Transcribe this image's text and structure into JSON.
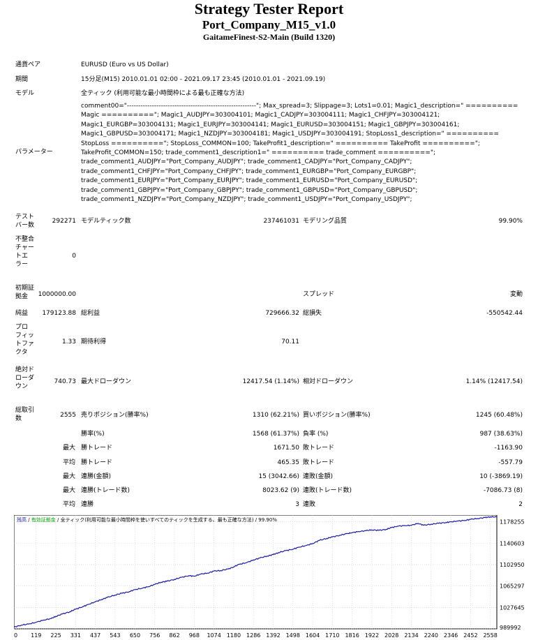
{
  "header": {
    "title": "Strategy Tester Report",
    "subtitle": "Port_Company_M15_v1.0",
    "server": "GaitameFinest-S2-Main (Build 1320)"
  },
  "info": {
    "symbol_label": "通貨ペア",
    "symbol_value": "EURUSD (Euro vs US Dollar)",
    "period_label": "期間",
    "period_value": "15分足(M15) 2010.01.01 02:00 - 2021.09.17 23:45 (2010.01.01 - 2021.09.19)",
    "model_label": "モデル",
    "model_value": "全ティック (利用可能な最小時間枠による最も正確な方法)",
    "params_label": "パラメーター",
    "params_value": "comment00=\"---------------------------------------------------------\"; Max_spread=3; Slippage=3; Lots1=0.01; Magic1_description=\" ========== Magic ==========\"; Magic1_AUDJPY=303004101; Magic1_CADJPY=303004111; Magic1_CHFJPY=303004121; Magic1_EURGBP=303004131; Magic1_EURJPY=303004141; Magic1_EURUSD=303004151; Magic1_GBPJPY=303004161; Magic1_GBPUSD=303004171; Magic1_NZDJPY=303004181; Magic1_USDJPY=303004191; StopLoss1_description=\" ========== StopLoss ==========\"; StopLoss_COMMON=100; TakeProfit1_description=\" ========== TakeProfit ==========\"; TakeProfit_COMMON=150; trade_comment1_description1=\" ========== trade_comment ==========\"; trade_comment1_AUDJPY=\"Port_Company_AUDJPY\"; trade_comment1_CADJPY=\"Port_Company_CADJPY\"; trade_comment1_CHFJPY=\"Port_Company_CHFJPY\"; trade_comment1_EURGBP=\"Port_Company_EURGBP\"; trade_comment1_EURJPY=\"Port_Company_EURJPY\"; trade_comment1_EURUSD=\"Port_Company_EURUSD\"; trade_comment1_GBPJPY=\"Port_Company_GBPJPY\"; trade_comment1_GBPUSD=\"Port_Company_GBPUSD\"; trade_comment1_NZDJPY=\"Port_Company_NZDJPY\"; trade_comment1_USDJPY=\"Port_Company_USDJPY\";"
  },
  "stats": {
    "bars_label": "テスト\nバー数",
    "bars_value": "292271",
    "ticks_label": "モデルティック数",
    "ticks_value": "237461031",
    "quality_label": "モデリング品質",
    "quality_value": "99.90%",
    "mismatch_label": "不整合\nチャー\nトエ\nラー",
    "mismatch_value": "0",
    "deposit_label": "初期証\n拠金",
    "deposit_value": "1000000.00",
    "spread_label": "スプレッド",
    "spread_value": "変動",
    "net_label": "純益",
    "net_value": "179123.88",
    "gross_profit_label": "総利益",
    "gross_profit_value": "729666.32",
    "gross_loss_label": "総損失",
    "gross_loss_value": "-550542.44",
    "pf_label": "プロ\nフィッ\nトファ\nクタ",
    "pf_value": "1.33",
    "expected_label": "期待利得",
    "expected_value": "70.11",
    "abs_dd_label": "絶対ド\nローダ\nウン",
    "abs_dd_value": "740.73",
    "max_dd_label": "最大ドローダウン",
    "max_dd_value": "12417.54 (1.14%)",
    "rel_dd_label": "相対ドローダウン",
    "rel_dd_value": "1.14% (12417.54)",
    "trades_label": "総取引\n数",
    "trades_value": "2555",
    "short_label": "売りポジション(勝率%)",
    "short_value": "1310 (62.21%)",
    "long_label": "買いポジション(勝率%)",
    "long_value": "1245 (60.48%)",
    "win_rate_label": "勝率(%)",
    "win_rate_value": "1568 (61.37%)",
    "loss_rate_label": "負率 (%)",
    "loss_rate_value": "987 (38.63%)",
    "max_label": "最大",
    "avg_label": "平均",
    "win_trade_label": "勝トレード",
    "loss_trade_label": "敗トレード",
    "max_win_value": "1671.50",
    "max_loss_value": "-1163.90",
    "avg_win_value": "465.35",
    "avg_loss_value": "-557.79",
    "cons_wins_money_label": "連勝(金額)",
    "cons_wins_money_value": "15 (3042.66)",
    "cons_losses_money_label": "連敗(金額)",
    "cons_losses_money_value": "10 (-3869.19)",
    "cons_profit_label": "連勝(トレード数)",
    "cons_profit_value": "8023.62 (9)",
    "cons_loss_label": "連敗(トレード数)",
    "cons_loss_value": "-7086.73 (8)",
    "avg_cons_win_label": "連勝",
    "avg_cons_win_value": "3",
    "avg_cons_loss_label": "連敗",
    "avg_cons_loss_value": "2"
  },
  "chart_data": {
    "type": "line",
    "legend_balance": "残高",
    "legend_equity": "有効証拠金",
    "legend_model": "全ティック(利用可能な最小時間枠を使いすべてのティックを生成する、最も正確な方法)",
    "legend_quality": "99.90%",
    "colors": {
      "balance": "#1a1aa6",
      "legend_balance": "#1a1aa6",
      "legend_equity": "#00a000",
      "grid": "#c8c8c8"
    },
    "grid": true,
    "x_ticks": [
      "0",
      "119",
      "225",
      "331",
      "437",
      "543",
      "650",
      "756",
      "862",
      "968",
      "1074",
      "1180",
      "1286",
      "1392",
      "1498",
      "1604",
      "1710",
      "1816",
      "1922",
      "2028",
      "2134",
      "2240",
      "2346",
      "2452",
      "2558"
    ],
    "y_ticks": [
      "1178255",
      "1140603",
      "1102950",
      "1065297",
      "1027645",
      "989992"
    ],
    "xlim": [
      0,
      2593
    ],
    "ylim": [
      989992,
      1190000
    ],
    "series": [
      {
        "x": [
          0,
          40,
          80,
          119,
          160,
          200,
          225,
          260,
          300,
          331,
          370,
          400,
          437,
          470,
          500,
          543,
          580,
          620,
          650,
          690,
          720,
          756,
          790,
          820,
          862,
          900,
          940,
          968,
          1000,
          1040,
          1074,
          1110,
          1150,
          1180,
          1210,
          1250,
          1286,
          1320,
          1360,
          1392,
          1420,
          1460,
          1498,
          1530,
          1570,
          1604,
          1640,
          1680,
          1710,
          1750,
          1790,
          1816,
          1850,
          1890,
          1922,
          1960,
          2000,
          2028,
          2060,
          2100,
          2134,
          2170,
          2200,
          2240,
          2280,
          2320,
          2346,
          2380,
          2420,
          2452,
          2490,
          2530,
          2558,
          2593
        ],
        "y": [
          993000,
          996500,
          998500,
          1001500,
          1005500,
          1008000,
          1012000,
          1016000,
          1020000,
          1024500,
          1029000,
          1033000,
          1037500,
          1041500,
          1045000,
          1049500,
          1052500,
          1055500,
          1059000,
          1061500,
          1064000,
          1068000,
          1072000,
          1073500,
          1077000,
          1080500,
          1083500,
          1082500,
          1086000,
          1088000,
          1091500,
          1092500,
          1095000,
          1099000,
          1103500,
          1106500,
          1111000,
          1114500,
          1118000,
          1120500,
          1124000,
          1127500,
          1130000,
          1133500,
          1136500,
          1140000,
          1145500,
          1149000,
          1151500,
          1154500,
          1157500,
          1159000,
          1161000,
          1162500,
          1164000,
          1163000,
          1165000,
          1168000,
          1170500,
          1171500,
          1172000,
          1175500,
          1172000,
          1174000,
          1175500,
          1177000,
          1178000,
          1179500,
          1180500,
          1182500,
          1184000,
          1185500,
          1187000,
          1186500
        ]
      }
    ]
  }
}
